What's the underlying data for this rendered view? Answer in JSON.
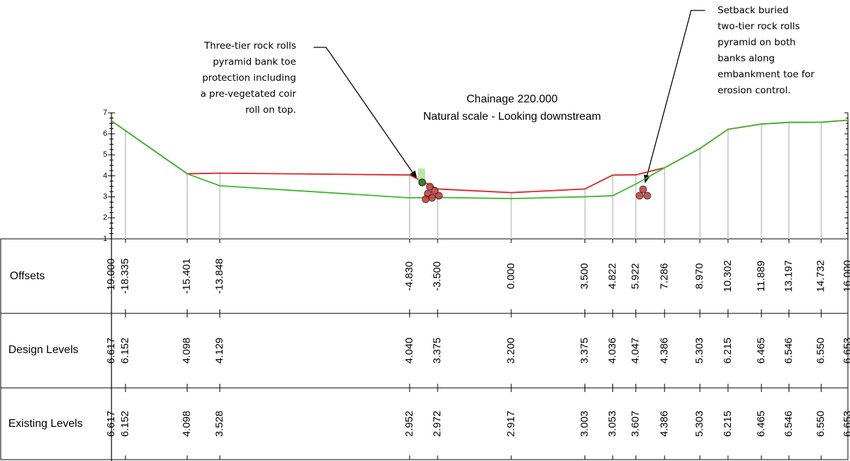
{
  "chart_data": {
    "type": "line",
    "title": [
      "Chainage 220.000",
      "Natural scale - Looking downstream"
    ],
    "x_label": "Offsets",
    "x": [
      -19,
      -18.335,
      -15.401,
      -13.848,
      -4.83,
      -3.5,
      0,
      3.5,
      4.822,
      5.922,
      7.286,
      8.97,
      10.302,
      11.889,
      13.197,
      14.732,
      16
    ],
    "x_labels": [
      "-19.000",
      "-18.335",
      "-15.401",
      "-13.848",
      "-4.830",
      "-3.500",
      "0.000",
      "3.500",
      "4.822",
      "5.922",
      "7.286",
      "8.970",
      "10.302",
      "11.889",
      "13.197",
      "14.732",
      "16.000"
    ],
    "xlim": [
      -19,
      16
    ],
    "ylim": [
      1,
      7
    ],
    "yticks": [
      1,
      2,
      3,
      4,
      5,
      6,
      7
    ],
    "series": [
      {
        "name": "Design Levels",
        "color": "#e02020",
        "values": [
          6.617,
          6.152,
          4.098,
          4.129,
          4.04,
          3.375,
          3.2,
          3.375,
          4.036,
          4.047,
          4.386,
          5.303,
          6.215,
          6.465,
          6.546,
          6.55,
          6.653
        ],
        "value_labels": [
          "6.617",
          "6.152",
          "4.098",
          "4.129",
          "4.040",
          "3.375",
          "3.200",
          "3.375",
          "4.036",
          "4.047",
          "4.386",
          "5.303",
          "6.215",
          "6.465",
          "6.546",
          "6.550",
          "6.653"
        ]
      },
      {
        "name": "Existing Levels",
        "color": "#3cb82c",
        "values": [
          6.617,
          6.152,
          4.098,
          3.528,
          2.952,
          2.972,
          2.917,
          3.003,
          3.053,
          3.607,
          4.386,
          5.303,
          6.215,
          6.465,
          6.546,
          6.55,
          6.653
        ],
        "value_labels": [
          "6.617",
          "6.152",
          "4.098",
          "3.528",
          "2.952",
          "2.972",
          "2.917",
          "3.003",
          "3.053",
          "3.607",
          "4.386",
          "5.303",
          "6.215",
          "6.465",
          "6.546",
          "6.550",
          "6.653"
        ]
      }
    ],
    "annotations": [
      {
        "lines": [
          "Three-tier rock rolls",
          "pyramid bank toe",
          "protection including",
          "a pre-vegetated coir",
          "roll on top."
        ]
      },
      {
        "lines": [
          "Setback buried",
          "two-tier rock rolls",
          "pyramid on both",
          "banks along",
          "embankment toe for",
          "erosion control."
        ]
      }
    ]
  }
}
